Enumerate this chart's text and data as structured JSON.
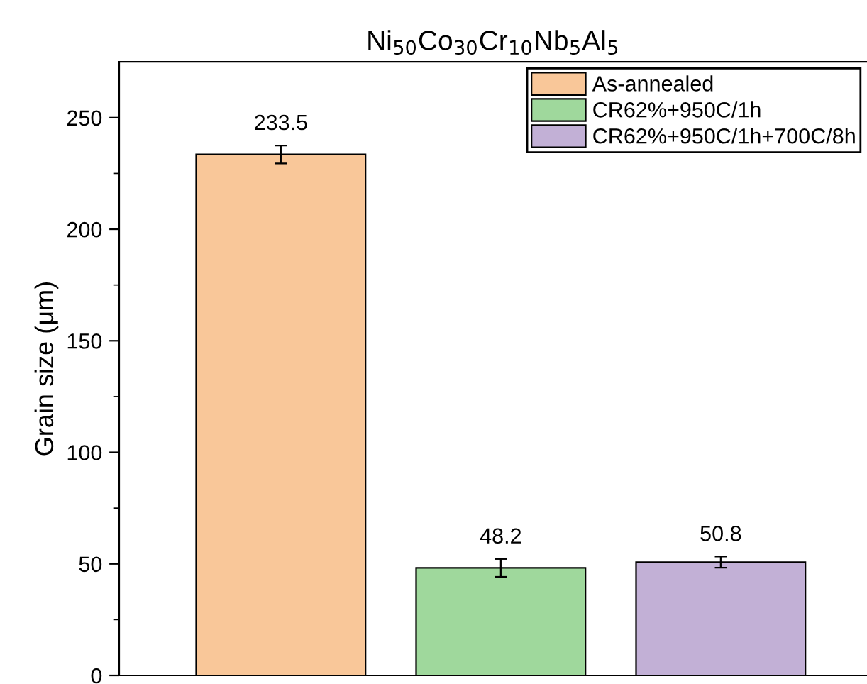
{
  "chart_data": {
    "type": "bar",
    "title": "Ni$_{50}$Co$_{30}$Cr$_{10}$Nb$_{5}$Al$_{5}$",
    "ylabel": "Grain size (μm)",
    "categories": [
      null,
      null,
      null
    ],
    "series": [
      {
        "name": "As-annealed",
        "color": "#f9c799",
        "values": [
          233.5,
          null,
          null
        ],
        "errors": [
          4,
          null,
          null
        ]
      },
      {
        "name": "CR62%+950C/1h",
        "color": "#9fd89c",
        "values": [
          null,
          48.2,
          null
        ],
        "errors": [
          null,
          4,
          null
        ]
      },
      {
        "name": "CR62%+950C/1h+700C/8h",
        "color": "#c2b0d6",
        "values": [
          null,
          null,
          50.8
        ],
        "errors": [
          null,
          null,
          2.5
        ]
      }
    ],
    "ylim": [
      0,
      275
    ],
    "yticks": [
      0,
      50,
      100,
      150,
      200,
      250
    ],
    "data_labels": true,
    "legend": "top right",
    "grid": false,
    "tick_labels": "y"
  }
}
